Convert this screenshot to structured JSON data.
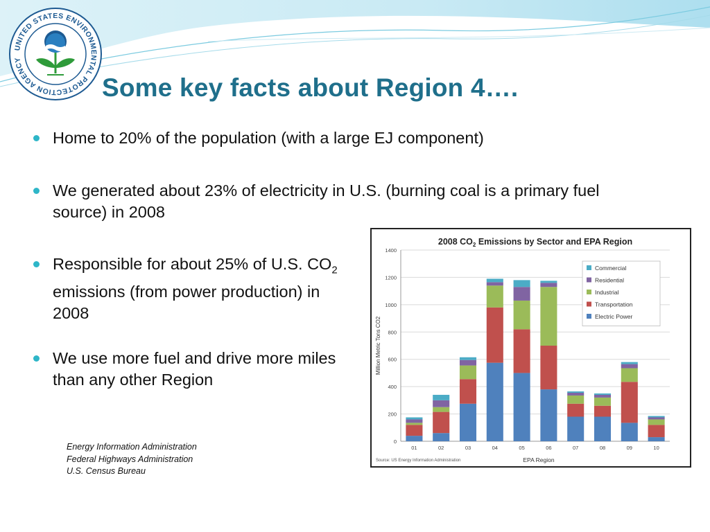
{
  "slide": {
    "title": "Some key facts about Region 4….",
    "bullets": [
      "Home to 20% of the population (with a large EJ component)",
      "We generated about 23% of electricity in U.S. (burning coal is a primary fuel source) in 2008",
      {
        "pre": "Responsible for about 25% of U.S. CO",
        "sub": "2",
        "post": " emissions (from power production) in 2008"
      },
      "We use more fuel and drive more miles than any other Region"
    ],
    "sources": [
      "Energy Information Administration",
      "Federal Highways Administration",
      "U.S. Census Bureau"
    ],
    "logo_text": "UNITED STATES ENVIRONMENTAL PROTECTION AGENCY"
  },
  "colors": {
    "title": "#1f6f8b",
    "bullet_dot": "#2eb6c8",
    "electric_power": "#4f81bd",
    "transportation": "#c0504d",
    "industrial": "#9bbb59",
    "residential": "#8064a2",
    "commercial": "#4bacc6"
  },
  "chart_data": {
    "type": "bar",
    "stacked": true,
    "title_pre": "2008 CO",
    "title_sub": "2",
    "title_post": " Emissions by Sector and EPA Region",
    "xlabel": "EPA Region",
    "ylabel": "Million Metric Tons CO2",
    "source_note": "Source: US Energy Information Administration",
    "categories": [
      "01",
      "02",
      "03",
      "04",
      "05",
      "06",
      "07",
      "08",
      "09",
      "10"
    ],
    "ylim": [
      0,
      1400
    ],
    "yticks": [
      0,
      200,
      400,
      600,
      800,
      1000,
      1200,
      1400
    ],
    "grid": true,
    "legend_position": "top-right",
    "series": [
      {
        "name": "Electric Power",
        "color": "#4f81bd",
        "values": [
          40,
          60,
          275,
          575,
          500,
          380,
          180,
          180,
          135,
          30
        ]
      },
      {
        "name": "Transportation",
        "color": "#c0504d",
        "values": [
          80,
          155,
          180,
          405,
          320,
          320,
          95,
          80,
          300,
          90
        ]
      },
      {
        "name": "Industrial",
        "color": "#9bbb59",
        "values": [
          15,
          35,
          100,
          160,
          210,
          430,
          60,
          60,
          100,
          40
        ]
      },
      {
        "name": "Residential",
        "color": "#8064a2",
        "values": [
          25,
          50,
          40,
          25,
          100,
          30,
          20,
          20,
          30,
          15
        ]
      },
      {
        "name": "Commercial",
        "color": "#4bacc6",
        "values": [
          15,
          40,
          20,
          25,
          50,
          15,
          10,
          10,
          15,
          10
        ]
      }
    ],
    "legend_order": [
      "Commercial",
      "Residential",
      "Industrial",
      "Transportation",
      "Electric Power"
    ]
  }
}
